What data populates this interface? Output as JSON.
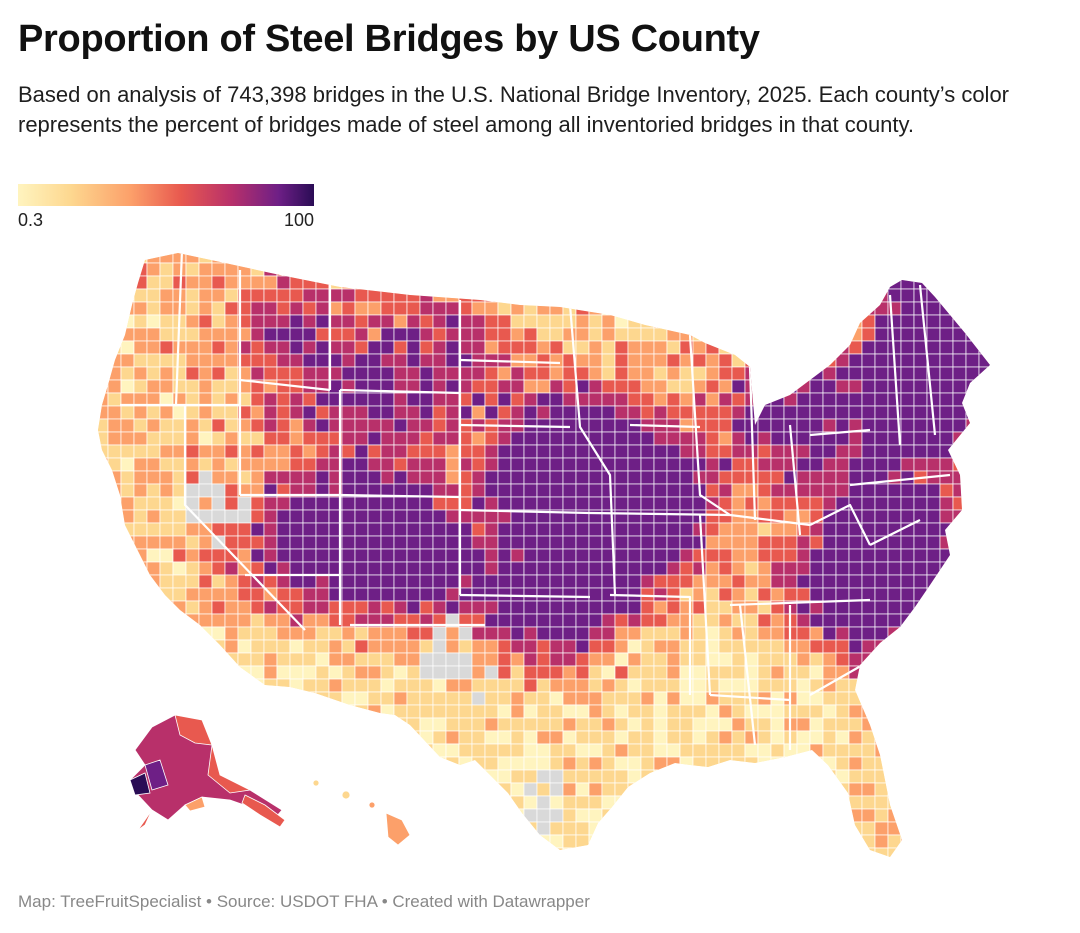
{
  "header": {
    "title": "Proportion of Steel Bridges by US County",
    "subtitle": "Based on analysis of 743,398 bridges in the U.S. National Bridge Inventory, 2025. Each county’s color represents the percent of bridges made of steel among all inventoried bridges in that county."
  },
  "legend": {
    "min_label": "0.3",
    "max_label": "100",
    "colors": [
      "#fff4bf",
      "#fdd78f",
      "#fca06a",
      "#e8594f",
      "#b8306a",
      "#6e1f86",
      "#2a0c55"
    ]
  },
  "map": {
    "no_data_color": "#d9d9d9",
    "border_color": "#ffffff"
  },
  "footer": {
    "text": "Map: TreeFruitSpecialist • Source: USDOT FHA • Created with Datawrapper"
  }
}
